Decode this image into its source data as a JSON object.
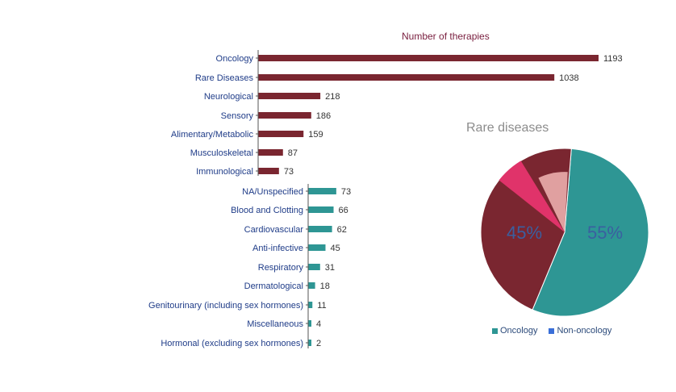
{
  "header": {
    "title": "",
    "source": ""
  },
  "panel_title": "Number of therapies",
  "pie_title": "Rare diseases",
  "colors": {
    "bar_dark": "#7a2630",
    "bar_teal": "#2e9694",
    "pie_oncology": "#2e9694",
    "pie_non_oncology": "#7a2630",
    "pie_highlight": "#e0336a",
    "pie_light": "#e0a0a0"
  },
  "legend": [
    {
      "label": "Oncology",
      "color": "#2e9694"
    },
    {
      "label": "Non-oncology",
      "color": "#3a6fd8"
    }
  ],
  "chart_data": [
    {
      "type": "bar",
      "orientation": "horizontal",
      "title": "Number of therapies",
      "categories": [
        "Oncology",
        "Rare Diseases",
        "Neurological",
        "Sensory",
        "Alimentary/Metabolic",
        "Musculoskeletal",
        "Immunological",
        "NA/Unspecified",
        "Blood and Clotting",
        "Cardiovascular",
        "Anti-infective",
        "Respiratory",
        "Dermatological",
        "Genitourinary (including sex hormones)",
        "Miscellaneous",
        "Hormonal (excluding sex hormones)"
      ],
      "values": [
        1193,
        1038,
        218,
        186,
        159,
        87,
        73,
        73,
        66,
        62,
        45,
        31,
        18,
        11,
        4,
        2
      ],
      "groups": [
        "dark",
        "dark",
        "dark",
        "dark",
        "dark",
        "dark",
        "dark",
        "teal",
        "teal",
        "teal",
        "teal",
        "teal",
        "teal",
        "teal",
        "teal",
        "teal"
      ]
    },
    {
      "type": "pie",
      "title": "Rare diseases",
      "labels": [
        "Oncology",
        "Non-oncology"
      ],
      "values": [
        55,
        45
      ],
      "value_labels": [
        "55%",
        "45%"
      ]
    }
  ]
}
